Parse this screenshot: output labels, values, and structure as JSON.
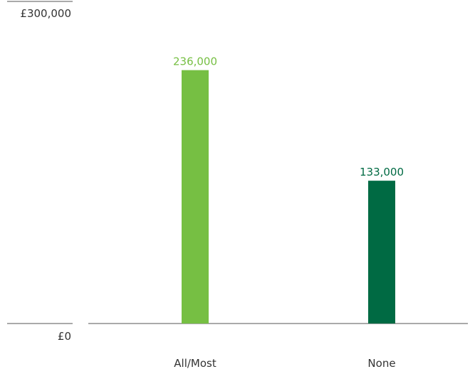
{
  "chart_data": {
    "type": "bar",
    "categories": [
      "All/Most",
      "None"
    ],
    "values": [
      236000,
      133000
    ],
    "data_labels": [
      "236,000",
      "133,000"
    ],
    "bar_colors": [
      "#76bf43",
      "#006a43"
    ],
    "ylim": [
      0,
      300000
    ],
    "y_tick_labels": {
      "top": "£300,000",
      "bottom": "£0"
    },
    "title": "",
    "xlabel": "",
    "ylabel": "",
    "grid": false,
    "legend": "none"
  }
}
